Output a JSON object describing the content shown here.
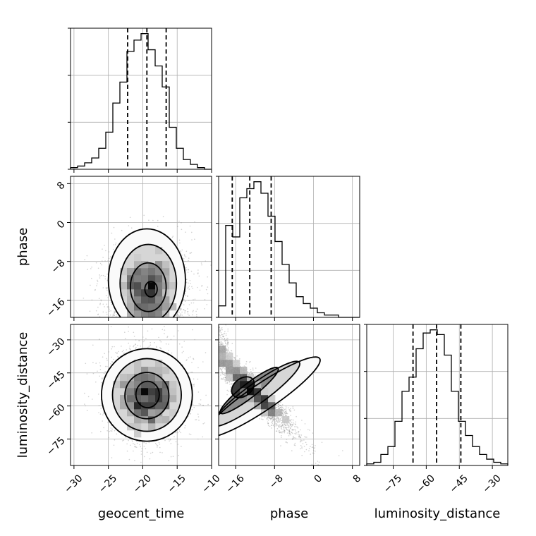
{
  "chart_data": {
    "type": "corner",
    "parameters": [
      "geocent_time",
      "phase",
      "luminosity_distance"
    ],
    "axis_labels": {
      "x": [
        "geocent_time",
        "phase",
        "luminosity_distance"
      ],
      "y": [
        "phase",
        "luminosity_distance"
      ]
    },
    "grid": true,
    "ranges": {
      "geocent_time": [
        -30.5,
        -10
      ],
      "phase": [
        -19.5,
        9.5
      ],
      "luminosity_distance": [
        -87,
        -23
      ]
    },
    "ticks": {
      "geocent_time": [
        -30,
        -25,
        -20,
        -15,
        -10
      ],
      "phase": [
        -16,
        -8,
        0,
        8
      ],
      "luminosity_distance": [
        -75,
        -60,
        -45,
        -30
      ]
    },
    "tick_labels": {
      "geocent_time": [
        "−30",
        "−25",
        "−20",
        "−15",
        "−10"
      ],
      "phase": [
        "−16",
        "−8",
        "0",
        "8"
      ],
      "luminosity_distance": [
        "−75",
        "−60",
        "−45",
        "−30"
      ]
    },
    "quantiles": {
      "geocent_time": [
        -22.2,
        -19.4,
        -16.6
      ],
      "phase": [
        -16.7,
        -13.1,
        -8.7
      ],
      "luminosity_distance": [
        -66.0,
        -55.3,
        -44.3
      ]
    },
    "histograms": {
      "geocent_time": {
        "edges_range": [
          -30.5,
          -10
        ],
        "counts": [
          1,
          2,
          4,
          7,
          13,
          23,
          41,
          54,
          73,
          80,
          84,
          74,
          64,
          51,
          26,
          13,
          6,
          3,
          1,
          0
        ]
      },
      "phase": {
        "edges_range": [
          -19.5,
          9.5
        ],
        "counts": [
          5,
          40,
          35,
          52,
          56,
          59,
          54,
          44,
          33,
          23,
          15,
          9,
          6,
          4,
          2,
          1,
          1,
          0,
          0,
          0
        ]
      },
      "luminosity_distance": {
        "edges_range": [
          -87,
          -23
        ],
        "counts": [
          1,
          2,
          7,
          12,
          28,
          47,
          56,
          74,
          84,
          86,
          83,
          70,
          47,
          28,
          19,
          12,
          7,
          4,
          2,
          1
        ]
      }
    },
    "joint": {
      "geocent_time__phase": {
        "mean": [
          -19.2,
          -13.0
        ],
        "std": [
          2.9,
          4.6
        ],
        "corr": 0.0,
        "clip": [
          null,
          [
            -19.5,
            9.5
          ]
        ],
        "contours": [
          {
            "level": 1,
            "center": [
              -18.8,
              -13.7
            ],
            "radius": [
              0.9,
              1.6
            ]
          },
          {
            "level": 2,
            "center": [
              -19.2,
              -13.3
            ],
            "radius": [
              2.6,
              5.0
            ]
          },
          {
            "level": 3,
            "center": [
              -19.2,
              -12.5
            ],
            "radius": [
              4.1,
              8.0
            ]
          },
          {
            "level": 4,
            "center": [
              -19.4,
              -11.8
            ],
            "radius": [
              5.6,
              10.5
            ]
          }
        ]
      },
      "geocent_time__luminosity_distance": {
        "mean": [
          -19.4,
          -55.3
        ],
        "std": [
          2.9,
          10.5
        ],
        "corr": 0.0,
        "clip": [
          null,
          null
        ],
        "contours": [
          {
            "level": 1,
            "center": [
              -19.3,
              -54.8
            ],
            "radius": [
              1.7,
              6.0
            ]
          },
          {
            "level": 2,
            "center": [
              -19.4,
              -55.3
            ],
            "radius": [
              3.2,
              10.5
            ]
          },
          {
            "level": 3,
            "center": [
              -19.4,
              -55.0
            ],
            "radius": [
              5.0,
              16.5
            ]
          },
          {
            "level": 4,
            "center": [
              -19.4,
              -55.0
            ],
            "radius": [
              6.6,
              21.0
            ]
          }
        ]
      },
      "phase__luminosity_distance": {
        "mean": [
          -12.5,
          -53.0
        ],
        "std": [
          4.6,
          10.5
        ],
        "corr": -0.93,
        "clip": [
          [
            -19.5,
            9.5
          ],
          null
        ],
        "contours": [
          {
            "level": 1,
            "center": [
              -14.5,
              -51.5
            ],
            "radius": [
              2.6,
              4.0
            ],
            "angle": -38
          },
          {
            "level": 2,
            "center": [
              -13.2,
              -53.0
            ],
            "radius": [
              7.5,
              3.2
            ],
            "angle": -38
          },
          {
            "level": 3,
            "center": [
              -11.8,
              -54.5
            ],
            "radius": [
              11.0,
              4.6
            ],
            "angle": -36
          },
          {
            "level": 4,
            "center": [
              -10.5,
              -56.0
            ],
            "radius": [
              14.2,
              6.0
            ],
            "angle": -34
          }
        ]
      }
    }
  }
}
